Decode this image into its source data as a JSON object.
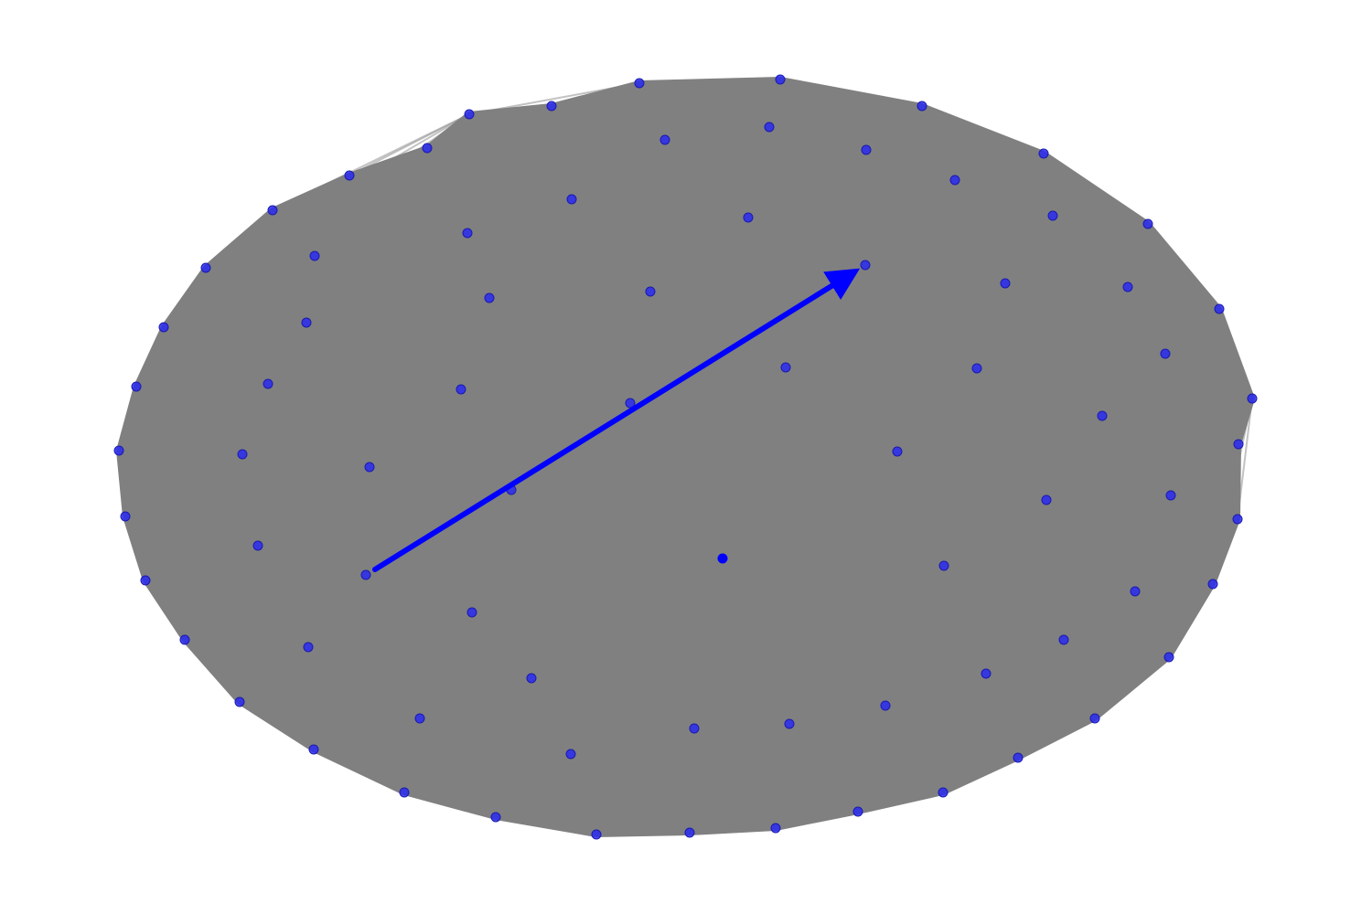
{
  "graph": {
    "type": "network",
    "node_count": 86,
    "layout": "dense-ellipse",
    "highlighted_edge": {
      "from": "n-left-inner",
      "to": "n-upper-center",
      "directed": true
    },
    "center_node": "n-center"
  },
  "colors": {
    "background": "#ffffff",
    "edge_fill": "#808080",
    "edge_outline": "#9a9a9a",
    "node": "#2a2af0",
    "node_stroke": "#1a1ab0",
    "highlight_edge": "#0000ff"
  },
  "icons": {
    "arrow": "arrowhead-icon"
  }
}
